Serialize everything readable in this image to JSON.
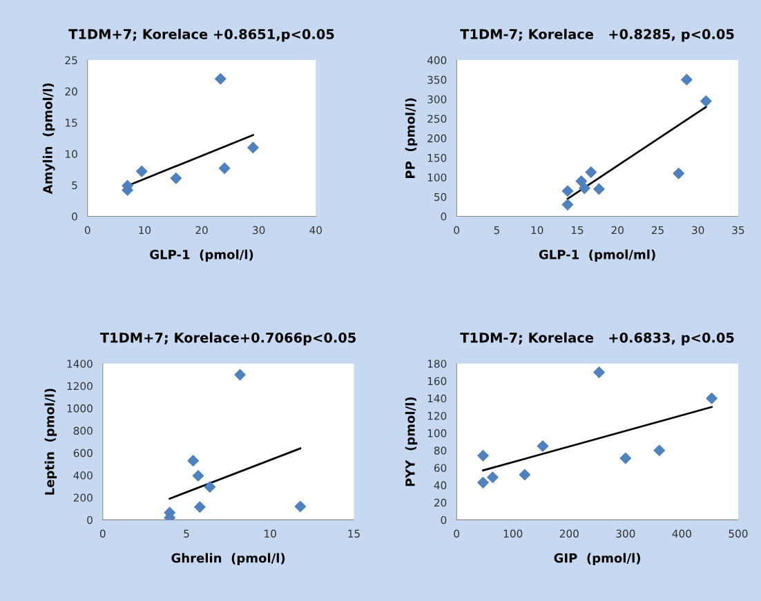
{
  "chart_data": [
    {
      "type": "scatter",
      "title": "T1DM+7; Korelace +0.8651,p<0.05",
      "xlabel": "GLP-1  (pmol/l)",
      "ylabel": "Amylin  (pmol/l)",
      "xlim": [
        0,
        40
      ],
      "ylim": [
        0,
        25
      ],
      "xticks": [
        0,
        10,
        20,
        30,
        40
      ],
      "yticks": [
        0,
        5,
        10,
        15,
        20,
        25
      ],
      "grid": false,
      "marker": "diamond",
      "series": [
        {
          "color": "#4f81bd",
          "x": [
            7,
            7,
            9.5,
            15.5,
            23.3,
            24,
            29
          ],
          "values": [
            4.9,
            4.2,
            7.2,
            6.1,
            22,
            7.7,
            11
          ]
        },
        {
          "type": "line",
          "color": "#000000",
          "marker": "none",
          "x": [
            7,
            29
          ],
          "values": [
            4.9,
            13
          ]
        }
      ]
    },
    {
      "type": "scatter",
      "title": "T1DM-7; Korelace   +0.8285, p<0.05",
      "xlabel": "GLP-1  (pmol/ml)",
      "ylabel": "PP  (pmol/l)",
      "xlim": [
        0,
        35
      ],
      "ylim": [
        0,
        400
      ],
      "xticks": [
        0,
        5,
        10,
        15,
        20,
        25,
        30,
        35
      ],
      "yticks": [
        0,
        50,
        100,
        150,
        200,
        250,
        300,
        350,
        400
      ],
      "grid": false,
      "marker": "diamond",
      "series": [
        {
          "color": "#4f81bd",
          "x": [
            13.8,
            13.8,
            15.5,
            15.9,
            16.7,
            17.7,
            27.6,
            28.6,
            31
          ],
          "values": [
            65,
            30,
            90,
            72,
            113,
            70,
            110,
            350,
            295
          ]
        },
        {
          "type": "line",
          "color": "#000000",
          "marker": "none",
          "x": [
            13.8,
            31
          ],
          "values": [
            45,
            280
          ]
        }
      ]
    },
    {
      "type": "scatter",
      "title": "T1DM+7; Korelace+0.7066p<0.05",
      "xlabel": "Ghrelin  (pmol/l)",
      "ylabel": "Leptin  (pmol/l)",
      "xlim": [
        0,
        15
      ],
      "ylim": [
        0,
        1400
      ],
      "xticks": [
        0,
        5,
        10,
        15
      ],
      "yticks": [
        0,
        200,
        400,
        600,
        800,
        1000,
        1200,
        1400
      ],
      "grid": false,
      "marker": "diamond",
      "series": [
        {
          "color": "#4f81bd",
          "x": [
            4,
            4,
            5.4,
            5.7,
            5.8,
            6.4,
            8.2,
            11.8
          ],
          "values": [
            65,
            20,
            530,
            395,
            115,
            295,
            1300,
            120
          ]
        },
        {
          "type": "line",
          "color": "#000000",
          "marker": "none",
          "x": [
            4,
            11.8
          ],
          "values": [
            190,
            640
          ]
        }
      ]
    },
    {
      "type": "scatter",
      "title": "T1DM-7; Korelace   +0.6833, p<0.05",
      "xlabel": "GIP  (pmol/l)",
      "ylabel": "PYY  (pmol/l)",
      "xlim": [
        0,
        500
      ],
      "ylim": [
        0,
        180
      ],
      "xticks": [
        0,
        100,
        200,
        300,
        400,
        500
      ],
      "yticks": [
        0,
        20,
        40,
        60,
        80,
        100,
        120,
        140,
        160,
        180
      ],
      "grid": false,
      "marker": "diamond",
      "series": [
        {
          "color": "#4f81bd",
          "x": [
            47,
            47,
            64,
            121,
            153,
            253,
            300,
            360,
            453
          ],
          "values": [
            74,
            43,
            49,
            52,
            85,
            170,
            71,
            80,
            140
          ]
        },
        {
          "type": "line",
          "color": "#000000",
          "marker": "none",
          "x": [
            47,
            453
          ],
          "values": [
            57,
            130
          ]
        }
      ]
    }
  ]
}
